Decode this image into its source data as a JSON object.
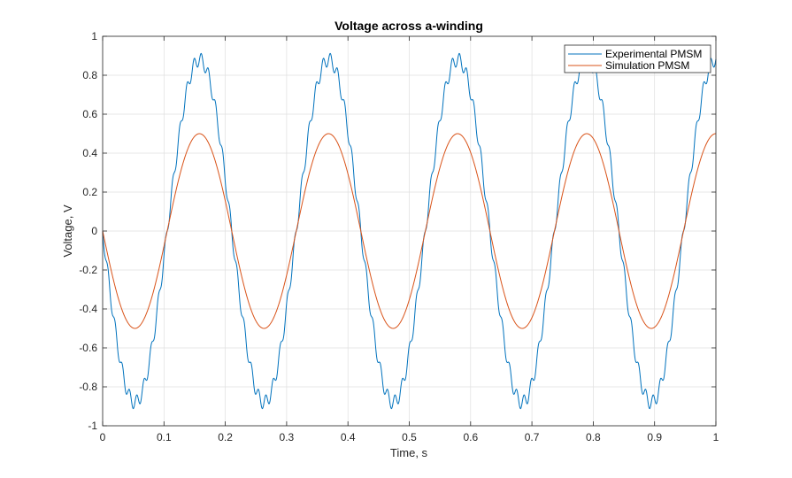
{
  "chart_data": {
    "type": "line",
    "title": "Voltage across a-winding",
    "xlabel": "Time, s",
    "ylabel": "Voltage, V",
    "xlim": [
      0,
      1
    ],
    "ylim": [
      -1,
      1
    ],
    "x_ticks": [
      "0",
      "0.1",
      "0.2",
      "0.3",
      "0.4",
      "0.5",
      "0.6",
      "0.7",
      "0.8",
      "0.9",
      "1"
    ],
    "y_ticks": [
      "-1",
      "-0.8",
      "-0.6",
      "-0.4",
      "-0.2",
      "0",
      "0.2",
      "0.4",
      "0.6",
      "0.8",
      "1"
    ],
    "grid": true,
    "legend_position": "top-right",
    "series": [
      {
        "name": "Experimental PMSM",
        "color": "#0072BD",
        "description": "sinusoid, amplitude ~0.88 with superimposed ripple, period ~0.21 s",
        "amplitude": 0.88,
        "period_s": 0.2105,
        "phase": "negative-going from 0 at t=0",
        "ripple_amplitude": 0.035,
        "ripple_harmonic": 18,
        "peak_value": 0.92,
        "trough_value": -0.92
      },
      {
        "name": "Simulation PMSM",
        "color": "#D95319",
        "amplitude": 0.5,
        "period_s": 0.2105,
        "phase": "negative-going from 0 at t=0",
        "peak_value": 0.5,
        "trough_value": -0.5
      }
    ]
  }
}
